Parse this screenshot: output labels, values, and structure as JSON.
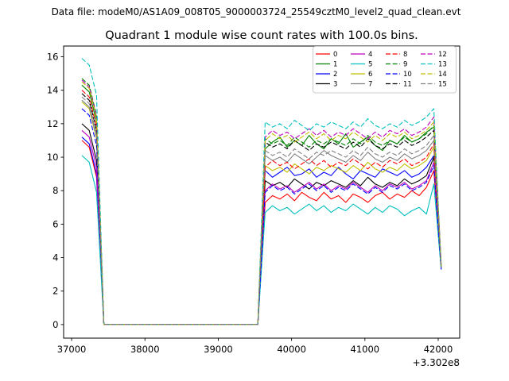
{
  "header": {
    "text": "Data file: modeM0/AS1A09_008T05_9000003724_25549cztM0_level2_quad_clean.evt"
  },
  "chart_data": {
    "type": "line",
    "title": "Quadrant 1 module wise count rates with 100.0s bins.",
    "xlabel": "",
    "ylabel": "",
    "x_offset_label": "+3.302e8",
    "xlim": [
      36891,
      42293
    ],
    "ylim": [
      -0.81,
      16.64
    ],
    "xticks": [
      37000,
      38000,
      39000,
      40000,
      41000,
      42000
    ],
    "xtick_labels": [
      "37000",
      "38000",
      "39000",
      "40000",
      "41000",
      "42000"
    ],
    "yticks": [
      0,
      2,
      4,
      6,
      8,
      10,
      12,
      14,
      16
    ],
    "ytick_labels": [
      "0",
      "2",
      "4",
      "6",
      "8",
      "10",
      "12",
      "14",
      "16"
    ],
    "grid": false,
    "legend_position": "upper right",
    "legend_columns": 4,
    "x": [
      37140,
      37240,
      37340,
      37440,
      37540,
      37640,
      37740,
      37840,
      37940,
      38040,
      38140,
      38240,
      38340,
      38440,
      38540,
      38640,
      38740,
      38840,
      38940,
      39040,
      39140,
      39240,
      39340,
      39440,
      39540,
      39640,
      39740,
      39840,
      39940,
      40040,
      40140,
      40240,
      40340,
      40440,
      40540,
      40640,
      40740,
      40840,
      40940,
      41040,
      41140,
      41240,
      41340,
      41440,
      41540,
      41640,
      41740,
      41840,
      41940,
      42040
    ],
    "series": [
      {
        "name": "0",
        "color": "#ff0000",
        "linestyle": "solid",
        "y": [
          11.0,
          10.6,
          8.8,
          0,
          0,
          0,
          0,
          0,
          0,
          0,
          0,
          0,
          0,
          0,
          0,
          0,
          0,
          0,
          0,
          0,
          0,
          0,
          0,
          0,
          0,
          7.3,
          7.7,
          7.5,
          7.8,
          7.4,
          7.9,
          7.6,
          7.4,
          7.9,
          7.5,
          7.7,
          7.3,
          7.8,
          7.6,
          7.3,
          7.7,
          7.9,
          7.5,
          7.8,
          7.6,
          8.0,
          7.7,
          8.2,
          9.2,
          3.4
        ]
      },
      {
        "name": "1",
        "color": "#008000",
        "linestyle": "solid",
        "y": [
          14.3,
          13.9,
          12.1,
          0,
          0,
          0,
          0,
          0,
          0,
          0,
          0,
          0,
          0,
          0,
          0,
          0,
          0,
          0,
          0,
          0,
          0,
          0,
          0,
          0,
          0,
          10.5,
          10.9,
          11.2,
          10.6,
          11.0,
          10.7,
          11.3,
          10.8,
          10.5,
          11.1,
          10.8,
          11.4,
          10.6,
          10.9,
          11.2,
          10.7,
          10.4,
          11.0,
          10.8,
          11.3,
          10.9,
          11.1,
          11.5,
          11.8,
          3.5
        ]
      },
      {
        "name": "2",
        "color": "#0000ff",
        "linestyle": "solid",
        "y": [
          11.2,
          10.8,
          9.0,
          0,
          0,
          0,
          0,
          0,
          0,
          0,
          0,
          0,
          0,
          0,
          0,
          0,
          0,
          0,
          0,
          0,
          0,
          0,
          0,
          0,
          0,
          9.2,
          8.8,
          9.1,
          9.4,
          8.9,
          9.0,
          9.3,
          8.8,
          9.1,
          8.9,
          9.4,
          9.0,
          8.7,
          9.2,
          9.0,
          8.8,
          9.3,
          9.1,
          8.9,
          9.2,
          8.8,
          9.0,
          9.4,
          10.1,
          3.3
        ]
      },
      {
        "name": "3",
        "color": "#000000",
        "linestyle": "solid",
        "y": [
          12.0,
          11.6,
          9.8,
          0,
          0,
          0,
          0,
          0,
          0,
          0,
          0,
          0,
          0,
          0,
          0,
          0,
          0,
          0,
          0,
          0,
          0,
          0,
          0,
          0,
          0,
          8.6,
          8.3,
          8.5,
          8.2,
          8.7,
          8.4,
          8.1,
          8.5,
          8.3,
          8.6,
          8.4,
          8.2,
          8.6,
          8.3,
          8.8,
          8.4,
          8.2,
          8.5,
          8.3,
          8.7,
          8.4,
          8.6,
          8.9,
          10.0,
          3.4
        ]
      },
      {
        "name": "4",
        "color": "#bf00bf",
        "linestyle": "solid",
        "y": [
          11.6,
          11.2,
          9.4,
          0,
          0,
          0,
          0,
          0,
          0,
          0,
          0,
          0,
          0,
          0,
          0,
          0,
          0,
          0,
          0,
          0,
          0,
          0,
          0,
          0,
          0,
          8.0,
          8.4,
          8.1,
          8.3,
          7.9,
          8.2,
          8.5,
          8.1,
          8.4,
          8.0,
          8.3,
          8.1,
          8.5,
          8.2,
          7.9,
          8.3,
          8.0,
          8.4,
          8.2,
          8.5,
          8.1,
          8.3,
          8.6,
          9.7,
          3.5
        ]
      },
      {
        "name": "5",
        "color": "#00bfbf",
        "linestyle": "solid",
        "y": [
          10.1,
          9.7,
          7.9,
          0,
          0,
          0,
          0,
          0,
          0,
          0,
          0,
          0,
          0,
          0,
          0,
          0,
          0,
          0,
          0,
          0,
          0,
          0,
          0,
          0,
          0,
          6.7,
          7.1,
          6.8,
          7.0,
          6.6,
          6.9,
          7.2,
          6.8,
          7.1,
          6.7,
          7.0,
          6.8,
          7.2,
          6.9,
          6.6,
          7.0,
          6.7,
          7.1,
          6.9,
          6.5,
          6.8,
          7.0,
          6.6,
          8.4,
          3.3
        ]
      },
      {
        "name": "6",
        "color": "#bfbf00",
        "linestyle": "solid",
        "y": [
          13.3,
          12.9,
          11.1,
          0,
          0,
          0,
          0,
          0,
          0,
          0,
          0,
          0,
          0,
          0,
          0,
          0,
          0,
          0,
          0,
          0,
          0,
          0,
          0,
          0,
          0,
          9.5,
          9.2,
          9.4,
          9.1,
          9.6,
          9.3,
          9.0,
          9.4,
          9.2,
          9.5,
          9.3,
          9.1,
          9.5,
          9.2,
          9.7,
          9.3,
          9.1,
          9.4,
          9.2,
          9.6,
          9.3,
          9.5,
          9.8,
          10.6,
          3.4
        ]
      },
      {
        "name": "7",
        "color": "#808080",
        "linestyle": "solid",
        "y": [
          13.4,
          13.0,
          11.2,
          0,
          0,
          0,
          0,
          0,
          0,
          0,
          0,
          0,
          0,
          0,
          0,
          0,
          0,
          0,
          0,
          0,
          0,
          0,
          0,
          0,
          0,
          10.1,
          9.8,
          10.0,
          9.7,
          10.2,
          9.9,
          9.6,
          10.0,
          10.4,
          10.1,
          9.9,
          9.7,
          10.1,
          9.8,
          10.3,
          9.9,
          9.7,
          10.0,
          9.8,
          10.2,
          9.9,
          10.1,
          10.4,
          11.0,
          3.5
        ]
      },
      {
        "name": "8",
        "color": "#ff0000",
        "linestyle": "dashed",
        "y": [
          14.0,
          13.6,
          11.8,
          0,
          0,
          0,
          0,
          0,
          0,
          0,
          0,
          0,
          0,
          0,
          0,
          0,
          0,
          0,
          0,
          0,
          0,
          0,
          0,
          0,
          0,
          9.4,
          9.8,
          9.5,
          9.7,
          9.3,
          9.6,
          9.9,
          9.5,
          9.8,
          9.4,
          9.7,
          9.5,
          9.9,
          9.6,
          9.3,
          9.7,
          9.4,
          9.8,
          9.6,
          9.9,
          9.5,
          9.7,
          10.0,
          10.8,
          3.4
        ]
      },
      {
        "name": "9",
        "color": "#008000",
        "linestyle": "dashed",
        "y": [
          14.7,
          14.3,
          12.5,
          0,
          0,
          0,
          0,
          0,
          0,
          0,
          0,
          0,
          0,
          0,
          0,
          0,
          0,
          0,
          0,
          0,
          0,
          0,
          0,
          0,
          0,
          11.1,
          10.8,
          11.0,
          10.7,
          11.2,
          10.9,
          10.6,
          11.0,
          10.8,
          11.1,
          10.9,
          10.7,
          11.1,
          10.8,
          11.3,
          10.9,
          10.7,
          11.0,
          10.8,
          11.2,
          10.9,
          11.1,
          11.4,
          11.9,
          3.6
        ]
      },
      {
        "name": "10",
        "color": "#0000ff",
        "linestyle": "dashed",
        "y": [
          12.9,
          12.5,
          10.7,
          0,
          0,
          0,
          0,
          0,
          0,
          0,
          0,
          0,
          0,
          0,
          0,
          0,
          0,
          0,
          0,
          0,
          0,
          0,
          0,
          0,
          0,
          7.9,
          8.3,
          8.0,
          8.2,
          7.8,
          8.1,
          8.4,
          8.0,
          8.3,
          7.9,
          8.2,
          8.0,
          8.4,
          8.1,
          7.8,
          8.2,
          7.9,
          8.3,
          8.1,
          8.4,
          8.0,
          8.2,
          8.5,
          9.5,
          3.3
        ]
      },
      {
        "name": "11",
        "color": "#000000",
        "linestyle": "dashed",
        "y": [
          13.8,
          13.4,
          11.6,
          0,
          0,
          0,
          0,
          0,
          0,
          0,
          0,
          0,
          0,
          0,
          0,
          0,
          0,
          0,
          0,
          0,
          0,
          0,
          0,
          0,
          0,
          10.9,
          10.6,
          10.8,
          10.5,
          11.0,
          10.7,
          10.4,
          10.8,
          10.6,
          10.9,
          10.7,
          10.5,
          10.9,
          10.6,
          11.1,
          10.7,
          10.5,
          10.8,
          10.6,
          11.0,
          10.7,
          10.9,
          11.2,
          11.6,
          3.5
        ]
      },
      {
        "name": "12",
        "color": "#bf00bf",
        "linestyle": "dashed",
        "y": [
          14.6,
          14.2,
          12.4,
          0,
          0,
          0,
          0,
          0,
          0,
          0,
          0,
          0,
          0,
          0,
          0,
          0,
          0,
          0,
          0,
          0,
          0,
          0,
          0,
          0,
          0,
          11.2,
          11.6,
          11.3,
          11.5,
          11.1,
          11.4,
          11.7,
          11.3,
          11.6,
          11.2,
          11.5,
          11.3,
          11.7,
          11.4,
          11.1,
          11.5,
          11.2,
          11.6,
          11.4,
          11.7,
          11.3,
          11.5,
          11.8,
          12.4,
          3.6
        ]
      },
      {
        "name": "13",
        "color": "#00bfbf",
        "linestyle": "dashed",
        "y": [
          15.9,
          15.5,
          13.7,
          0,
          0,
          0,
          0,
          0,
          0,
          0,
          0,
          0,
          0,
          0,
          0,
          0,
          0,
          0,
          0,
          0,
          0,
          0,
          0,
          0,
          0,
          12.1,
          11.8,
          12.0,
          11.7,
          12.2,
          11.9,
          11.6,
          12.0,
          11.8,
          12.1,
          11.9,
          11.7,
          12.1,
          11.8,
          12.3,
          11.9,
          11.7,
          12.0,
          11.8,
          12.2,
          11.9,
          12.1,
          12.4,
          12.9,
          3.4
        ]
      },
      {
        "name": "14",
        "color": "#bfbf00",
        "linestyle": "dashed",
        "y": [
          14.5,
          14.1,
          12.3,
          0,
          0,
          0,
          0,
          0,
          0,
          0,
          0,
          0,
          0,
          0,
          0,
          0,
          0,
          0,
          0,
          0,
          0,
          0,
          0,
          0,
          0,
          11.0,
          11.4,
          11.1,
          11.3,
          10.9,
          11.2,
          11.5,
          11.1,
          11.4,
          11.0,
          11.3,
          11.1,
          11.5,
          11.2,
          10.9,
          11.3,
          11.0,
          11.4,
          11.2,
          11.5,
          11.1,
          11.3,
          11.6,
          12.1,
          3.5
        ]
      },
      {
        "name": "15",
        "color": "#808080",
        "linestyle": "dashed",
        "y": [
          13.6,
          13.2,
          11.4,
          0,
          0,
          0,
          0,
          0,
          0,
          0,
          0,
          0,
          0,
          0,
          0,
          0,
          0,
          0,
          0,
          0,
          0,
          0,
          0,
          0,
          0,
          10.4,
          10.1,
          10.3,
          10.0,
          10.5,
          10.2,
          9.9,
          10.3,
          10.1,
          10.4,
          10.2,
          10.0,
          10.4,
          10.1,
          10.6,
          10.2,
          10.0,
          10.3,
          10.1,
          10.5,
          10.2,
          10.4,
          10.7,
          11.3,
          3.4
        ]
      }
    ]
  }
}
